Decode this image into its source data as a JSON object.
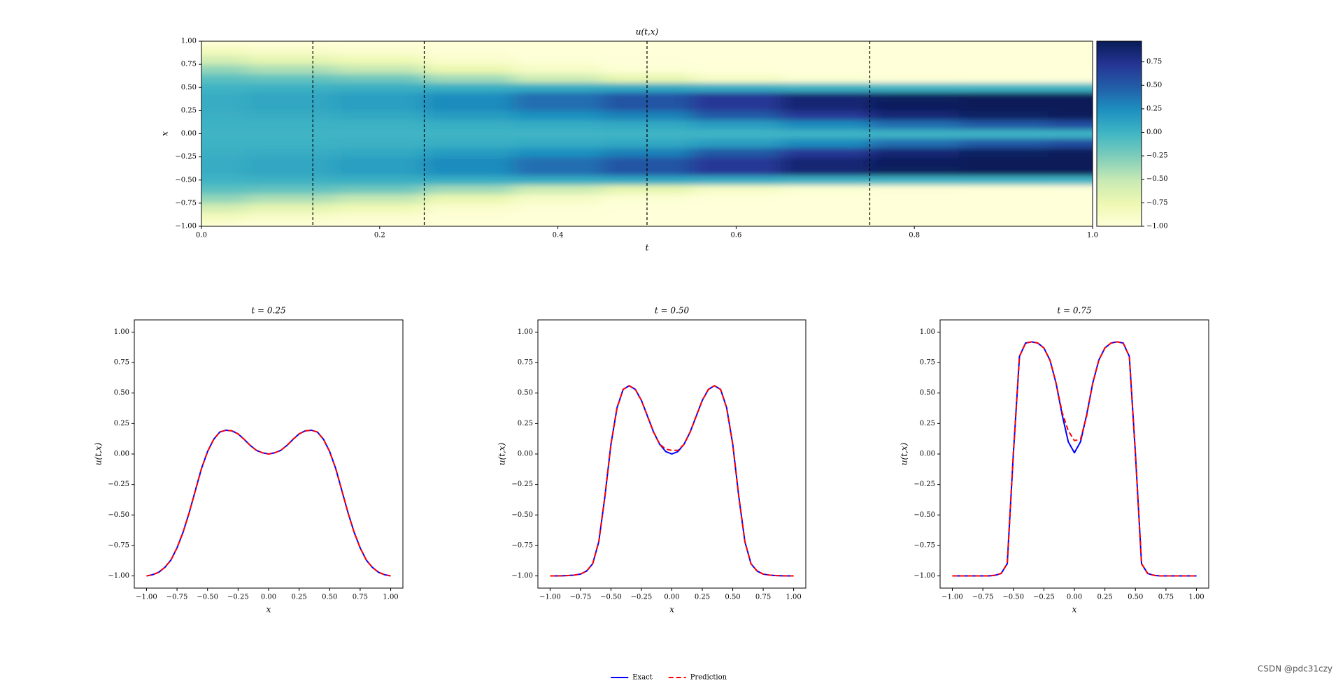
{
  "chart_data": [
    {
      "type": "heatmap",
      "title": "u(t,x)",
      "xlabel": "t",
      "ylabel": "x",
      "xlim": [
        0,
        1
      ],
      "ylim": [
        -1,
        1
      ],
      "xticks": [
        {
          "value": 0,
          "label": "0.0"
        },
        0.2,
        0.4,
        0.6,
        0.8,
        {
          "value": 1,
          "label": "1.0"
        }
      ],
      "yticks": [
        {
          "value": -1,
          "label": "−1.00"
        },
        {
          "value": -0.75,
          "label": "−0.75"
        },
        {
          "value": -0.5,
          "label": "−0.50"
        },
        {
          "value": -0.25,
          "label": "−0.25"
        },
        {
          "value": 0,
          "label": "0.00"
        },
        {
          "value": 0.25,
          "label": "0.25"
        },
        {
          "value": 0.5,
          "label": "0.50"
        },
        {
          "value": 0.75,
          "label": "0.75"
        },
        {
          "value": 1,
          "label": "1.00"
        }
      ],
      "vlines": [
        0.125,
        0.25,
        0.5,
        0.75
      ],
      "colormap": [
        "#ffffd9",
        "#edf8b1",
        "#c7e9b4",
        "#7fcdbb",
        "#41b6c4",
        "#1d91c0",
        "#225ea8",
        "#253494",
        "#081d58"
      ],
      "clim": [
        -1,
        0.97
      ],
      "cticks": [
        {
          "value": -1,
          "label": "−1.00"
        },
        {
          "value": -0.75,
          "label": "−0.75"
        },
        {
          "value": -0.5,
          "label": "−0.50"
        },
        {
          "value": -0.25,
          "label": "−0.25"
        },
        {
          "value": 0,
          "label": "0.00"
        },
        {
          "value": 0.25,
          "label": "0.25"
        },
        {
          "value": 0.5,
          "label": "0.50"
        },
        {
          "value": 0.75,
          "label": "0.75"
        }
      ],
      "t": [
        0,
        0.1,
        0.2,
        0.3,
        0.4,
        0.5,
        0.6,
        0.7,
        0.8,
        0.9,
        1
      ],
      "x": [
        -1,
        -0.9,
        -0.8,
        -0.7,
        -0.6,
        -0.5,
        -0.4,
        -0.3,
        -0.2,
        -0.1,
        0,
        0.1,
        0.2,
        0.3,
        0.4,
        0.5,
        0.6,
        0.7,
        0.8,
        0.9,
        1
      ],
      "z": [
        [
          -1,
          -0.83,
          -0.59,
          -0.33,
          -0.12,
          0,
          0.05,
          0.05,
          0.03,
          0.01,
          0,
          0.01,
          0.03,
          0.05,
          0.05,
          0,
          -0.12,
          -0.33,
          -0.59,
          -0.83,
          -1
        ],
        [
          -1,
          -0.9,
          -0.7,
          -0.42,
          -0.15,
          0.02,
          0.09,
          0.09,
          0.05,
          0.01,
          0,
          0.01,
          0.05,
          0.09,
          0.09,
          0.02,
          -0.15,
          -0.42,
          -0.7,
          -0.9,
          -1
        ],
        [
          -1,
          -0.94,
          -0.78,
          -0.5,
          -0.2,
          0.03,
          0.14,
          0.14,
          0.08,
          0.02,
          0,
          0.02,
          0.08,
          0.14,
          0.14,
          0.03,
          -0.2,
          -0.5,
          -0.78,
          -0.94,
          -1
        ],
        [
          -1,
          -0.98,
          -0.92,
          -0.74,
          -0.38,
          0.04,
          0.25,
          0.26,
          0.16,
          0.04,
          0,
          0.04,
          0.16,
          0.26,
          0.25,
          0.04,
          -0.38,
          -0.74,
          -0.92,
          -0.98,
          -1
        ],
        [
          -1,
          -0.99,
          -0.97,
          -0.88,
          -0.55,
          0.06,
          0.4,
          0.4,
          0.23,
          0.06,
          0,
          0.06,
          0.23,
          0.4,
          0.4,
          0.06,
          -0.55,
          -0.88,
          -0.97,
          -0.99,
          -1
        ],
        [
          -1,
          -0.999,
          -0.993,
          -0.96,
          -0.72,
          0.08,
          0.53,
          0.53,
          0.31,
          0.08,
          0,
          0.08,
          0.31,
          0.53,
          0.53,
          0.08,
          -0.72,
          -0.96,
          -0.993,
          -0.999,
          -1
        ],
        [
          -1,
          -1,
          -1,
          -0.99,
          -0.88,
          0.05,
          0.7,
          0.7,
          0.5,
          0.15,
          0,
          0.15,
          0.5,
          0.7,
          0.7,
          0.05,
          -0.88,
          -0.99,
          -1,
          -1,
          -1
        ],
        [
          -1,
          -1,
          -1,
          -1,
          -0.95,
          0.02,
          0.86,
          0.86,
          0.7,
          0.26,
          0.01,
          0.26,
          0.7,
          0.86,
          0.86,
          0.02,
          -0.95,
          -1,
          -1,
          -1,
          -1
        ],
        [
          -1,
          -1,
          -1,
          -1,
          -0.98,
          0,
          0.94,
          0.95,
          0.85,
          0.4,
          0.01,
          0.4,
          0.85,
          0.95,
          0.94,
          0,
          -0.98,
          -1,
          -1,
          -1,
          -1
        ],
        [
          -1,
          -1,
          -1,
          -1,
          -0.99,
          0,
          0.97,
          0.97,
          0.93,
          0.5,
          0.01,
          0.5,
          0.93,
          0.97,
          0.97,
          0,
          -0.99,
          -1,
          -1,
          -1,
          -1
        ],
        [
          -1,
          -1,
          -1,
          -1,
          -1,
          0,
          0.98,
          0.98,
          0.96,
          0.58,
          0.01,
          0.58,
          0.96,
          0.98,
          0.98,
          0,
          -1,
          -1,
          -1,
          -1,
          -1
        ]
      ]
    },
    {
      "type": "line",
      "title": "t = 0.25",
      "xlabel": "x",
      "ylabel": "u(t,x)",
      "xlim": [
        -1.1,
        1.1
      ],
      "ylim": [
        -1.1,
        1.1
      ],
      "xticks": [
        {
          "value": -1,
          "label": "−1.00"
        },
        {
          "value": -0.75,
          "label": "−0.75"
        },
        {
          "value": -0.5,
          "label": "−0.50"
        },
        {
          "value": -0.25,
          "label": "−0.25"
        },
        {
          "value": 0,
          "label": "0.00"
        },
        {
          "value": 0.25,
          "label": "0.25"
        },
        {
          "value": 0.5,
          "label": "0.50"
        },
        {
          "value": 0.75,
          "label": "0.75"
        },
        {
          "value": 1,
          "label": "1.00"
        }
      ],
      "yticks": [
        {
          "value": -1,
          "label": "−1.00"
        },
        {
          "value": -0.75,
          "label": "−0.75"
        },
        {
          "value": -0.5,
          "label": "−0.50"
        },
        {
          "value": -0.25,
          "label": "−0.25"
        },
        {
          "value": 0,
          "label": "0.00"
        },
        {
          "value": 0.25,
          "label": "0.25"
        },
        {
          "value": 0.5,
          "label": "0.50"
        },
        {
          "value": 0.75,
          "label": "0.75"
        },
        {
          "value": 1,
          "label": "1.00"
        }
      ],
      "x": [
        -1,
        -0.95,
        -0.9,
        -0.85,
        -0.8,
        -0.75,
        -0.7,
        -0.65,
        -0.6,
        -0.55,
        -0.5,
        -0.45,
        -0.4,
        -0.35,
        -0.3,
        -0.25,
        -0.2,
        -0.15,
        -0.1,
        -0.05,
        0,
        0.05,
        0.1,
        0.15,
        0.2,
        0.25,
        0.3,
        0.35,
        0.4,
        0.45,
        0.5,
        0.55,
        0.6,
        0.65,
        0.7,
        0.75,
        0.8,
        0.85,
        0.9,
        0.95,
        1
      ],
      "series": [
        {
          "name": "Exact",
          "color": "#0000ff",
          "dashed": false,
          "values": [
            -1,
            -0.99,
            -0.97,
            -0.93,
            -0.87,
            -0.77,
            -0.64,
            -0.48,
            -0.3,
            -0.12,
            0.02,
            0.12,
            0.18,
            0.195,
            0.19,
            0.165,
            0.12,
            0.07,
            0.03,
            0.01,
            0,
            0.01,
            0.03,
            0.07,
            0.12,
            0.165,
            0.19,
            0.195,
            0.18,
            0.12,
            0.02,
            -0.12,
            -0.3,
            -0.48,
            -0.64,
            -0.77,
            -0.87,
            -0.93,
            -0.97,
            -0.99,
            -1
          ]
        },
        {
          "name": "Prediction",
          "color": "#ff0000",
          "dashed": true,
          "values": [
            -1,
            -0.99,
            -0.97,
            -0.93,
            -0.87,
            -0.77,
            -0.64,
            -0.48,
            -0.3,
            -0.12,
            0.02,
            0.12,
            0.18,
            0.195,
            0.19,
            0.165,
            0.12,
            0.07,
            0.03,
            0.01,
            0,
            0.01,
            0.03,
            0.07,
            0.12,
            0.165,
            0.19,
            0.195,
            0.18,
            0.12,
            0.02,
            -0.12,
            -0.3,
            -0.48,
            -0.64,
            -0.77,
            -0.87,
            -0.93,
            -0.97,
            -0.99,
            -1
          ]
        }
      ]
    },
    {
      "type": "line",
      "title": "t = 0.50",
      "xlabel": "x",
      "ylabel": "u(t,x)",
      "xlim": [
        -1.1,
        1.1
      ],
      "ylim": [
        -1.1,
        1.1
      ],
      "xticks": [
        {
          "value": -1,
          "label": "−1.00"
        },
        {
          "value": -0.75,
          "label": "−0.75"
        },
        {
          "value": -0.5,
          "label": "−0.50"
        },
        {
          "value": -0.25,
          "label": "−0.25"
        },
        {
          "value": 0,
          "label": "0.00"
        },
        {
          "value": 0.25,
          "label": "0.25"
        },
        {
          "value": 0.5,
          "label": "0.50"
        },
        {
          "value": 0.75,
          "label": "0.75"
        },
        {
          "value": 1,
          "label": "1.00"
        }
      ],
      "yticks": [
        {
          "value": -1,
          "label": "−1.00"
        },
        {
          "value": -0.75,
          "label": "−0.75"
        },
        {
          "value": -0.5,
          "label": "−0.50"
        },
        {
          "value": -0.25,
          "label": "−0.25"
        },
        {
          "value": 0,
          "label": "0.00"
        },
        {
          "value": 0.25,
          "label": "0.25"
        },
        {
          "value": 0.5,
          "label": "0.50"
        },
        {
          "value": 0.75,
          "label": "0.75"
        },
        {
          "value": 1,
          "label": "1.00"
        }
      ],
      "x": [
        -1,
        -0.95,
        -0.9,
        -0.85,
        -0.8,
        -0.75,
        -0.7,
        -0.65,
        -0.6,
        -0.55,
        -0.5,
        -0.45,
        -0.4,
        -0.35,
        -0.3,
        -0.25,
        -0.2,
        -0.15,
        -0.1,
        -0.05,
        0,
        0.05,
        0.1,
        0.15,
        0.2,
        0.25,
        0.3,
        0.35,
        0.4,
        0.45,
        0.5,
        0.55,
        0.6,
        0.65,
        0.7,
        0.75,
        0.8,
        0.85,
        0.9,
        0.95,
        1
      ],
      "series": [
        {
          "name": "Exact",
          "color": "#0000ff",
          "dashed": false,
          "values": [
            -1,
            -1,
            -0.999,
            -0.997,
            -0.993,
            -0.985,
            -0.96,
            -0.9,
            -0.72,
            -0.35,
            0.08,
            0.38,
            0.53,
            0.56,
            0.53,
            0.44,
            0.31,
            0.18,
            0.08,
            0.02,
            0,
            0.02,
            0.08,
            0.18,
            0.31,
            0.44,
            0.53,
            0.56,
            0.53,
            0.38,
            0.08,
            -0.35,
            -0.72,
            -0.9,
            -0.96,
            -0.985,
            -0.993,
            -0.997,
            -0.999,
            -1,
            -1
          ]
        },
        {
          "name": "Prediction",
          "color": "#ff0000",
          "dashed": true,
          "values": [
            -1,
            -1,
            -0.999,
            -0.997,
            -0.993,
            -0.985,
            -0.96,
            -0.9,
            -0.72,
            -0.35,
            0.08,
            0.38,
            0.53,
            0.56,
            0.53,
            0.44,
            0.31,
            0.18,
            0.08,
            0.04,
            0.03,
            0.03,
            0.08,
            0.18,
            0.31,
            0.44,
            0.53,
            0.56,
            0.53,
            0.38,
            0.08,
            -0.35,
            -0.72,
            -0.9,
            -0.96,
            -0.985,
            -0.993,
            -0.997,
            -0.999,
            -1,
            -1
          ]
        }
      ]
    },
    {
      "type": "line",
      "title": "t = 0.75",
      "xlabel": "x",
      "ylabel": "u(t,x)",
      "xlim": [
        -1.1,
        1.1
      ],
      "ylim": [
        -1.1,
        1.1
      ],
      "xticks": [
        {
          "value": -1,
          "label": "−1.00"
        },
        {
          "value": -0.75,
          "label": "−0.75"
        },
        {
          "value": -0.5,
          "label": "−0.50"
        },
        {
          "value": -0.25,
          "label": "−0.25"
        },
        {
          "value": 0,
          "label": "0.00"
        },
        {
          "value": 0.25,
          "label": "0.25"
        },
        {
          "value": 0.5,
          "label": "0.50"
        },
        {
          "value": 0.75,
          "label": "0.75"
        },
        {
          "value": 1,
          "label": "1.00"
        }
      ],
      "yticks": [
        {
          "value": -1,
          "label": "−1.00"
        },
        {
          "value": -0.75,
          "label": "−0.75"
        },
        {
          "value": -0.5,
          "label": "−0.50"
        },
        {
          "value": -0.25,
          "label": "−0.25"
        },
        {
          "value": 0,
          "label": "0.00"
        },
        {
          "value": 0.25,
          "label": "0.25"
        },
        {
          "value": 0.5,
          "label": "0.50"
        },
        {
          "value": 0.75,
          "label": "0.75"
        },
        {
          "value": 1,
          "label": "1.00"
        }
      ],
      "x": [
        -1,
        -0.95,
        -0.9,
        -0.85,
        -0.8,
        -0.75,
        -0.7,
        -0.65,
        -0.6,
        -0.55,
        -0.5,
        -0.45,
        -0.4,
        -0.35,
        -0.3,
        -0.25,
        -0.2,
        -0.15,
        -0.1,
        -0.05,
        0,
        0.05,
        0.1,
        0.15,
        0.2,
        0.25,
        0.3,
        0.35,
        0.4,
        0.45,
        0.5,
        0.55,
        0.6,
        0.65,
        0.7,
        0.75,
        0.8,
        0.85,
        0.9,
        0.95,
        1
      ],
      "series": [
        {
          "name": "Exact",
          "color": "#0000ff",
          "dashed": false,
          "values": [
            -1,
            -1,
            -1,
            -1,
            -1,
            -1,
            -1,
            -0.995,
            -0.98,
            -0.9,
            0,
            0.8,
            0.91,
            0.92,
            0.91,
            0.87,
            0.77,
            0.58,
            0.32,
            0.1,
            0.01,
            0.1,
            0.32,
            0.58,
            0.77,
            0.87,
            0.91,
            0.92,
            0.91,
            0.8,
            0,
            -0.9,
            -0.98,
            -0.995,
            -1,
            -1,
            -1,
            -1,
            -1,
            -1,
            -1
          ]
        },
        {
          "name": "Prediction",
          "color": "#ff0000",
          "dashed": true,
          "values": [
            -1,
            -1,
            -1,
            -1,
            -1,
            -1,
            -1,
            -0.995,
            -0.98,
            -0.9,
            0,
            0.8,
            0.91,
            0.92,
            0.91,
            0.87,
            0.77,
            0.58,
            0.34,
            0.19,
            0.11,
            0.12,
            0.31,
            0.58,
            0.77,
            0.87,
            0.91,
            0.92,
            0.91,
            0.8,
            0,
            -0.9,
            -0.98,
            -0.995,
            -1,
            -1,
            -1,
            -1,
            -1,
            -1,
            -1
          ]
        }
      ]
    }
  ],
  "legend": "lower center",
  "watermark": "CSDN @pdc31czy"
}
